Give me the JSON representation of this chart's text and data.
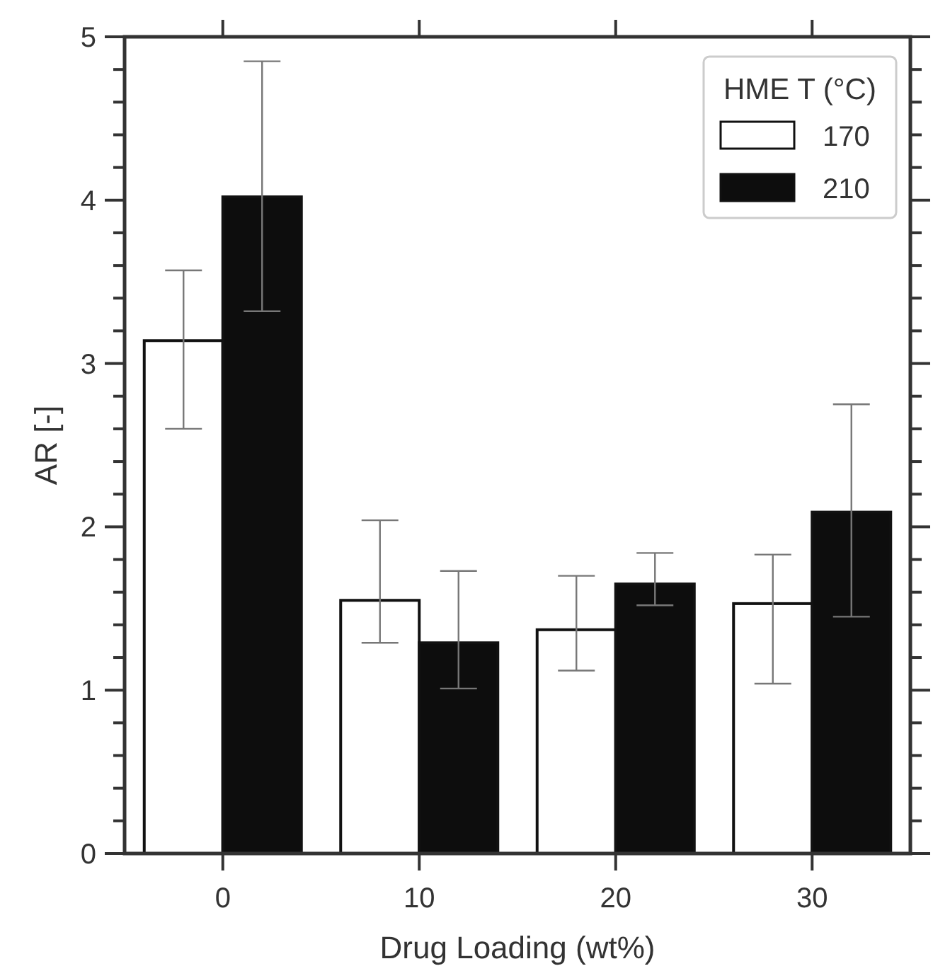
{
  "chart_data": {
    "type": "bar",
    "xlabel": "Drug Loading (wt%)",
    "ylabel": "AR [-]",
    "legend_title": "HME T (°C)",
    "legend": "top right",
    "categories": [
      "0",
      "10",
      "20",
      "30"
    ],
    "ylim": [
      0,
      5
    ],
    "yticks": [
      0,
      {
        "value": 0.2,
        "label": null
      },
      {
        "value": 0.4,
        "label": null
      },
      {
        "value": 0.6,
        "label": null
      },
      {
        "value": 0.8,
        "label": null
      },
      1,
      {
        "value": 1.2,
        "label": null
      },
      {
        "value": 1.4,
        "label": null
      },
      {
        "value": 1.6,
        "label": null
      },
      {
        "value": 1.8,
        "label": null
      },
      2,
      {
        "value": 2.2,
        "label": null
      },
      {
        "value": 2.4,
        "label": null
      },
      {
        "value": 2.6,
        "label": null
      },
      {
        "value": 2.8,
        "label": null
      },
      3,
      {
        "value": 3.2,
        "label": null
      },
      {
        "value": 3.4,
        "label": null
      },
      {
        "value": 3.6,
        "label": null
      },
      {
        "value": 3.8,
        "label": null
      },
      4,
      {
        "value": 4.2,
        "label": null
      },
      {
        "value": 4.4,
        "label": null
      },
      {
        "value": 4.6,
        "label": null
      },
      {
        "value": 4.8,
        "label": null
      },
      5
    ],
    "series": [
      {
        "name": "170",
        "color": "#ffffff",
        "values": [
          3.14,
          1.55,
          1.37,
          1.53
        ],
        "errors": [
          [
            2.6,
            3.57
          ],
          [
            1.29,
            2.04
          ],
          [
            1.12,
            1.7
          ],
          [
            1.04,
            1.83
          ]
        ]
      },
      {
        "name": "210",
        "color": "#0d0d0d",
        "values": [
          4.02,
          1.29,
          1.65,
          2.09
        ],
        "errors": [
          [
            3.32,
            4.85
          ],
          [
            1.01,
            1.73
          ],
          [
            1.52,
            1.84
          ],
          [
            1.45,
            2.75
          ]
        ]
      }
    ]
  }
}
